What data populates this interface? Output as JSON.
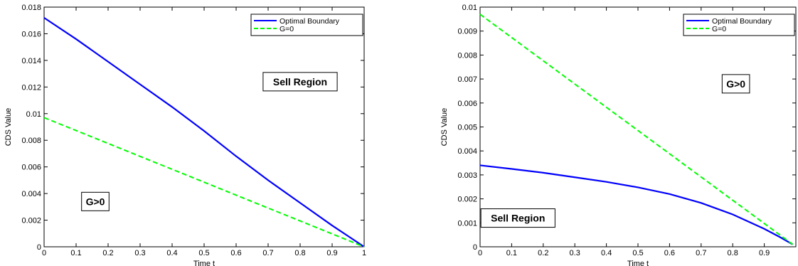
{
  "chart_data": [
    {
      "type": "line",
      "xlabel": "Time t",
      "ylabel": "CDS Value",
      "xlim": [
        0,
        1
      ],
      "ylim": [
        0,
        0.018
      ],
      "xticks": [
        "0",
        "0.1",
        "0.2",
        "0.3",
        "0.4",
        "0.5",
        "0.6",
        "0.7",
        "0.8",
        "0.9",
        "1"
      ],
      "yticks": [
        "0",
        "0.002",
        "0.004",
        "0.006",
        "0.008",
        "0.01",
        "0.012",
        "0.014",
        "0.016",
        "0.018"
      ],
      "legend_position": "top-right",
      "series": [
        {
          "name": "Optimal Boundary",
          "color": "#0000ff",
          "style": "solid",
          "x": [
            0,
            0.1,
            0.2,
            0.3,
            0.4,
            0.5,
            0.6,
            0.7,
            0.8,
            0.9,
            0.95,
            1.0
          ],
          "y": [
            0.0172,
            0.0156,
            0.0139,
            0.0122,
            0.0105,
            0.0087,
            0.0068,
            0.005,
            0.0033,
            0.0016,
            0.0008,
            0.0
          ]
        },
        {
          "name": "G=0",
          "color": "#00ff00",
          "style": "dashed",
          "x": [
            0,
            1.0
          ],
          "y": [
            0.0097,
            0.0
          ]
        }
      ],
      "annotations": [
        {
          "text": "Sell Region",
          "x": 0.8,
          "y": 0.0124
        },
        {
          "text": "G>0",
          "x": 0.16,
          "y": 0.0034
        }
      ]
    },
    {
      "type": "line",
      "xlabel": "Time t",
      "ylabel": "CDS Value",
      "xlim": [
        0,
        1
      ],
      "ylim": [
        0,
        0.01
      ],
      "xticks": [
        "0",
        "0.1",
        "0.2",
        "0.3",
        "0.4",
        "0.5",
        "0.6",
        "0.7",
        "0.8",
        "0.9"
      ],
      "yticks": [
        "0",
        "0.001",
        "0.002",
        "0.003",
        "0.004",
        "0.005",
        "0.006",
        "0.007",
        "0.008",
        "0.009",
        "0.01"
      ],
      "legend_position": "top-right",
      "series": [
        {
          "name": "Optimal Boundary",
          "color": "#0000ff",
          "style": "solid",
          "x": [
            0,
            0.1,
            0.2,
            0.3,
            0.4,
            0.5,
            0.6,
            0.7,
            0.8,
            0.9,
            0.95,
            0.99
          ],
          "y": [
            0.0034,
            0.00325,
            0.00309,
            0.0029,
            0.00271,
            0.00248,
            0.0022,
            0.00183,
            0.00135,
            0.00075,
            0.0004,
            0.0001
          ]
        },
        {
          "name": "G=0",
          "color": "#00ff00",
          "style": "dashed",
          "x": [
            0,
            0.99
          ],
          "y": [
            0.0097,
            0.0001
          ]
        }
      ],
      "annotations": [
        {
          "text": "G>0",
          "x": 0.81,
          "y": 0.0068
        },
        {
          "text": "Sell Region",
          "x": 0.12,
          "y": 0.0012
        }
      ]
    }
  ]
}
